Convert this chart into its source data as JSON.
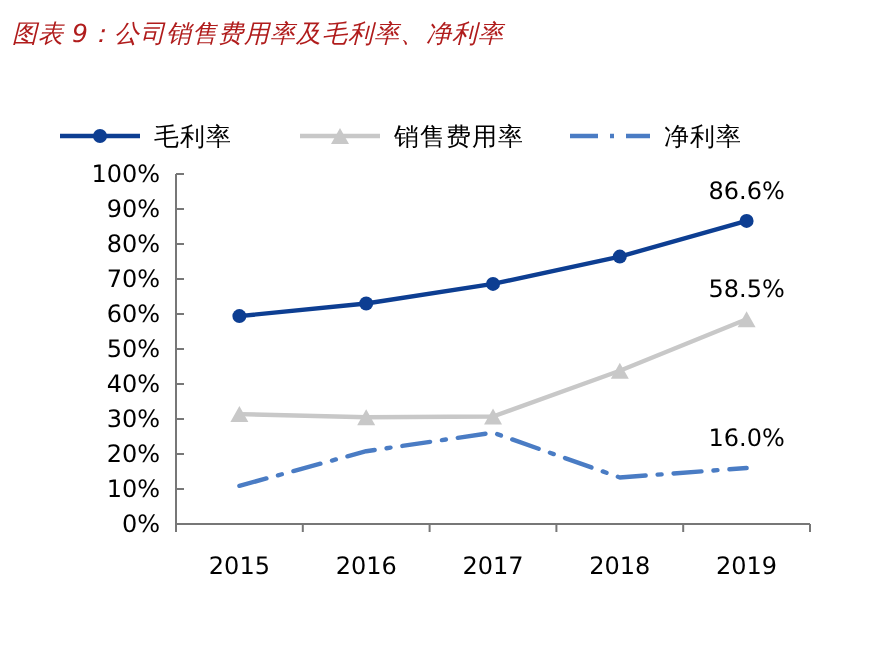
{
  "chart_data": {
    "type": "line",
    "title": "图表 9：公司销售费用率及毛利率、净利率",
    "categories": [
      "2015",
      "2016",
      "2017",
      "2018",
      "2019"
    ],
    "series": [
      {
        "name": "毛利率",
        "color": "#0d3e92",
        "values": [
          59.4,
          63.0,
          68.6,
          76.4,
          86.6
        ],
        "marker": "circle",
        "line_style": "solid",
        "value_labels": [
          null,
          null,
          null,
          null,
          "86.6%"
        ]
      },
      {
        "name": "销售费用率",
        "color": "#c8c8c8",
        "values": [
          31.4,
          30.5,
          30.7,
          43.8,
          58.5
        ],
        "marker": "triangle",
        "line_style": "solid",
        "value_labels": [
          null,
          null,
          null,
          null,
          "58.5%"
        ]
      },
      {
        "name": "净利率",
        "color": "#4a7cc4",
        "values": [
          10.9,
          20.8,
          26.1,
          13.3,
          16.0
        ],
        "marker": "none",
        "line_style": "dashed",
        "value_labels": [
          null,
          null,
          null,
          null,
          "16.0%"
        ]
      }
    ],
    "ylim": [
      0,
      100
    ],
    "yticks": [
      {
        "value": 0,
        "label": "0%"
      },
      {
        "value": 10,
        "label": "10%"
      },
      {
        "value": 20,
        "label": "20%"
      },
      {
        "value": 30,
        "label": "30%"
      },
      {
        "value": 40,
        "label": "40%"
      },
      {
        "value": 50,
        "label": "50%"
      },
      {
        "value": 60,
        "label": "60%"
      },
      {
        "value": 70,
        "label": "70%"
      },
      {
        "value": 80,
        "label": "80%"
      },
      {
        "value": 90,
        "label": "90%"
      },
      {
        "value": 100,
        "label": "100%"
      }
    ],
    "grid": false,
    "legend": "top"
  }
}
